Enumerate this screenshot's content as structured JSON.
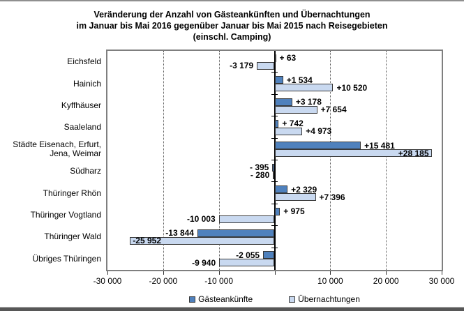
{
  "chart_data": {
    "type": "bar",
    "orientation": "horizontal",
    "title_lines": [
      "Veränderung der Anzahl von Gästeankünften und Übernachtungen",
      "im Januar bis Mai 2016 gegenüber Januar bis Mai 2015 nach Reisegebieten",
      "(einschl. Camping)"
    ],
    "categories": [
      "Eichsfeld",
      "Hainich",
      "Kyffhäuser",
      "Saaleland",
      "Städte Eisenach, Erfurt,\nJena, Weimar",
      "Südharz",
      "Thüringer Rhön",
      "Thüringer Vogtland",
      "Thüringer Wald",
      "Übriges Thüringen"
    ],
    "series": [
      {
        "name": "Gästeankünfte",
        "color": "#4F81BD",
        "values": [
          63,
          1534,
          3178,
          742,
          15481,
          -395,
          2329,
          975,
          -13844,
          -2055
        ],
        "labels": [
          "+ 63",
          "+1 534",
          "+3 178",
          "+ 742",
          "+15 481",
          "- 395",
          "+2 329",
          "+ 975",
          "-13 844",
          "-2 055"
        ],
        "label_inside": [
          false,
          false,
          false,
          false,
          false,
          false,
          false,
          false,
          false,
          false
        ]
      },
      {
        "name": "Übernachtungen",
        "color": "#C9D9F0",
        "values": [
          -3179,
          10520,
          7654,
          4973,
          28185,
          -280,
          7396,
          -10003,
          -25952,
          -9940
        ],
        "labels": [
          "-3 179",
          "+10 520",
          "+7 654",
          "+4 973",
          "+28 185",
          "- 280",
          "+7 396",
          "-10 003",
          "-25 952",
          "-9 940"
        ],
        "label_inside": [
          false,
          false,
          false,
          false,
          true,
          false,
          false,
          false,
          true,
          false
        ]
      }
    ],
    "axis": {
      "xmin": -30000,
      "xmax": 30000,
      "gridlines": [
        -20000,
        -10000,
        10000,
        20000
      ],
      "ticks": [
        {
          "value": -30000,
          "label": "-30 000"
        },
        {
          "value": -20000,
          "label": "-20 000"
        },
        {
          "value": -10000,
          "label": "-10 000"
        },
        {
          "value": 0,
          "label": ""
        },
        {
          "value": 10000,
          "label": "10 000"
        },
        {
          "value": 20000,
          "label": "20 000"
        },
        {
          "value": 30000,
          "label": "30 000"
        }
      ],
      "grid": "dotted",
      "legend_position": "bottom"
    }
  }
}
